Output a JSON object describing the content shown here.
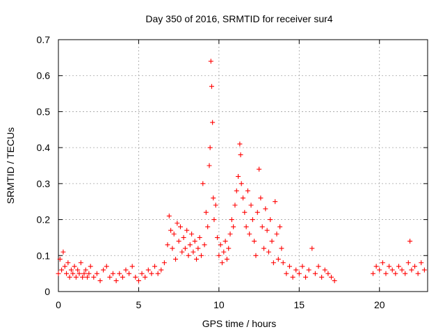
{
  "chart_data": {
    "type": "scatter",
    "title": "Day 350 of 2016, SRMTID for receiver sur4",
    "xlabel": "GPS time / hours",
    "ylabel": "SRMTID / TECUs",
    "xlim": [
      0,
      23
    ],
    "ylim": [
      0,
      0.7
    ],
    "xticks": [
      0,
      5,
      10,
      15,
      20
    ],
    "yticks": [
      0,
      0.1,
      0.2,
      0.3,
      0.4,
      0.5,
      0.6,
      0.7
    ],
    "xtick_labels": [
      "0",
      "5",
      "10",
      "15",
      "20"
    ],
    "ytick_labels": [
      "0",
      "0.1",
      "0.2",
      "0.3",
      "0.4",
      "0.5",
      "0.6",
      "0.7"
    ],
    "grid": true,
    "marker": "+",
    "color": "#ff0000",
    "series": [
      {
        "name": "SRMTID",
        "points": [
          [
            0.0,
            0.05
          ],
          [
            0.1,
            0.09
          ],
          [
            0.2,
            0.06
          ],
          [
            0.3,
            0.11
          ],
          [
            0.4,
            0.07
          ],
          [
            0.5,
            0.05
          ],
          [
            0.6,
            0.08
          ],
          [
            0.7,
            0.04
          ],
          [
            0.8,
            0.06
          ],
          [
            0.9,
            0.05
          ],
          [
            1.0,
            0.07
          ],
          [
            1.1,
            0.04
          ],
          [
            1.2,
            0.06
          ],
          [
            1.3,
            0.05
          ],
          [
            1.4,
            0.08
          ],
          [
            1.5,
            0.04
          ],
          [
            1.6,
            0.05
          ],
          [
            1.7,
            0.06
          ],
          [
            1.8,
            0.04
          ],
          [
            1.9,
            0.05
          ],
          [
            2.0,
            0.07
          ],
          [
            2.2,
            0.04
          ],
          [
            2.4,
            0.05
          ],
          [
            2.6,
            0.03
          ],
          [
            2.8,
            0.06
          ],
          [
            3.0,
            0.07
          ],
          [
            3.2,
            0.04
          ],
          [
            3.4,
            0.05
          ],
          [
            3.6,
            0.03
          ],
          [
            3.8,
            0.05
          ],
          [
            4.0,
            0.04
          ],
          [
            4.2,
            0.06
          ],
          [
            4.4,
            0.05
          ],
          [
            4.6,
            0.07
          ],
          [
            4.8,
            0.04
          ],
          [
            5.0,
            0.03
          ],
          [
            5.2,
            0.05
          ],
          [
            5.4,
            0.04
          ],
          [
            5.6,
            0.06
          ],
          [
            5.8,
            0.05
          ],
          [
            6.0,
            0.07
          ],
          [
            6.2,
            0.05
          ],
          [
            6.4,
            0.06
          ],
          [
            6.6,
            0.08
          ],
          [
            6.8,
            0.13
          ],
          [
            6.9,
            0.21
          ],
          [
            7.0,
            0.17
          ],
          [
            7.1,
            0.12
          ],
          [
            7.2,
            0.16
          ],
          [
            7.3,
            0.09
          ],
          [
            7.4,
            0.19
          ],
          [
            7.5,
            0.14
          ],
          [
            7.6,
            0.18
          ],
          [
            7.7,
            0.11
          ],
          [
            7.8,
            0.15
          ],
          [
            7.9,
            0.12
          ],
          [
            8.0,
            0.17
          ],
          [
            8.1,
            0.1
          ],
          [
            8.2,
            0.13
          ],
          [
            8.3,
            0.16
          ],
          [
            8.4,
            0.11
          ],
          [
            8.5,
            0.14
          ],
          [
            8.6,
            0.09
          ],
          [
            8.7,
            0.12
          ],
          [
            8.8,
            0.15
          ],
          [
            8.9,
            0.1
          ],
          [
            9.0,
            0.3
          ],
          [
            9.1,
            0.13
          ],
          [
            9.2,
            0.22
          ],
          [
            9.3,
            0.18
          ],
          [
            9.4,
            0.35
          ],
          [
            9.45,
            0.4
          ],
          [
            9.5,
            0.64
          ],
          [
            9.55,
            0.57
          ],
          [
            9.6,
            0.47
          ],
          [
            9.65,
            0.26
          ],
          [
            9.7,
            0.2
          ],
          [
            9.8,
            0.24
          ],
          [
            9.9,
            0.15
          ],
          [
            10.0,
            0.1
          ],
          [
            10.1,
            0.13
          ],
          [
            10.2,
            0.08
          ],
          [
            10.3,
            0.11
          ],
          [
            10.4,
            0.14
          ],
          [
            10.5,
            0.09
          ],
          [
            10.6,
            0.12
          ],
          [
            10.7,
            0.16
          ],
          [
            10.8,
            0.2
          ],
          [
            10.9,
            0.18
          ],
          [
            11.0,
            0.24
          ],
          [
            11.1,
            0.28
          ],
          [
            11.2,
            0.32
          ],
          [
            11.3,
            0.41
          ],
          [
            11.35,
            0.38
          ],
          [
            11.4,
            0.3
          ],
          [
            11.5,
            0.26
          ],
          [
            11.6,
            0.22
          ],
          [
            11.7,
            0.18
          ],
          [
            11.8,
            0.28
          ],
          [
            11.9,
            0.16
          ],
          [
            12.0,
            0.24
          ],
          [
            12.1,
            0.2
          ],
          [
            12.2,
            0.14
          ],
          [
            12.3,
            0.1
          ],
          [
            12.4,
            0.22
          ],
          [
            12.5,
            0.34
          ],
          [
            12.6,
            0.26
          ],
          [
            12.7,
            0.18
          ],
          [
            12.8,
            0.12
          ],
          [
            12.9,
            0.23
          ],
          [
            13.0,
            0.17
          ],
          [
            13.1,
            0.11
          ],
          [
            13.2,
            0.2
          ],
          [
            13.3,
            0.14
          ],
          [
            13.4,
            0.08
          ],
          [
            13.5,
            0.25
          ],
          [
            13.6,
            0.16
          ],
          [
            13.7,
            0.09
          ],
          [
            13.8,
            0.18
          ],
          [
            13.9,
            0.12
          ],
          [
            14.0,
            0.08
          ],
          [
            14.2,
            0.05
          ],
          [
            14.4,
            0.07
          ],
          [
            14.6,
            0.04
          ],
          [
            14.8,
            0.06
          ],
          [
            15.0,
            0.05
          ],
          [
            15.2,
            0.07
          ],
          [
            15.4,
            0.04
          ],
          [
            15.6,
            0.06
          ],
          [
            15.8,
            0.12
          ],
          [
            16.0,
            0.05
          ],
          [
            16.2,
            0.07
          ],
          [
            16.4,
            0.04
          ],
          [
            16.6,
            0.06
          ],
          [
            16.8,
            0.05
          ],
          [
            17.0,
            0.04
          ],
          [
            17.2,
            0.03
          ],
          [
            19.6,
            0.05
          ],
          [
            19.8,
            0.07
          ],
          [
            20.0,
            0.06
          ],
          [
            20.2,
            0.08
          ],
          [
            20.4,
            0.05
          ],
          [
            20.6,
            0.07
          ],
          [
            20.8,
            0.06
          ],
          [
            21.0,
            0.05
          ],
          [
            21.2,
            0.07
          ],
          [
            21.4,
            0.06
          ],
          [
            21.6,
            0.05
          ],
          [
            21.8,
            0.08
          ],
          [
            21.9,
            0.14
          ],
          [
            22.0,
            0.06
          ],
          [
            22.2,
            0.07
          ],
          [
            22.4,
            0.05
          ],
          [
            22.6,
            0.08
          ],
          [
            22.8,
            0.06
          ]
        ]
      }
    ]
  }
}
